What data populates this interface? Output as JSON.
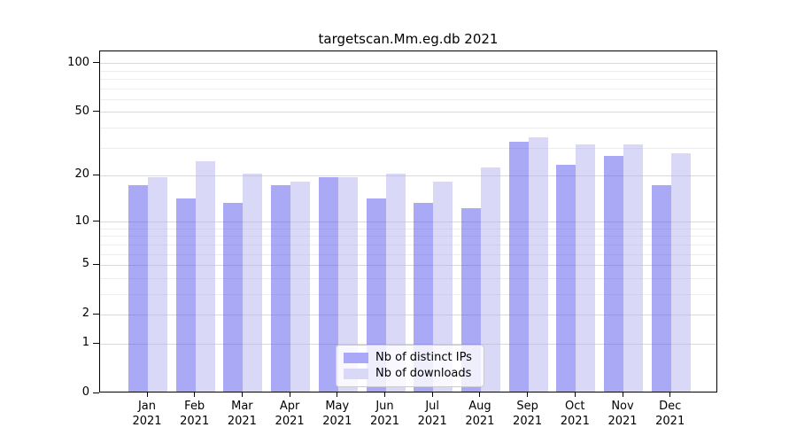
{
  "title": "targetscan.Mm.eg.db 2021",
  "colors": {
    "ips_bar": "rgba(84,84,238,0.5)",
    "downloads_bar": "rgba(179,179,239,0.5)",
    "ips_legend_swatch": "#a9a9f7",
    "downloads_legend_swatch": "#d9d9f7",
    "grid_major": "#d9d9d9",
    "grid_minor": "#ededed",
    "axis": "#000000",
    "text": "#000000",
    "legend_border": "#cccccc"
  },
  "chart_data": {
    "type": "bar",
    "title": "targetscan.Mm.eg.db 2021",
    "categories": [
      "Jan 2021",
      "Feb 2021",
      "Mar 2021",
      "Apr 2021",
      "May 2021",
      "Jun 2021",
      "Jul 2021",
      "Aug 2021",
      "Sep 2021",
      "Oct 2021",
      "Nov 2021",
      "Dec 2021"
    ],
    "month_labels": [
      "Jan",
      "Feb",
      "Mar",
      "Apr",
      "May",
      "Jun",
      "Jul",
      "Aug",
      "Sep",
      "Oct",
      "Nov",
      "Dec"
    ],
    "year_label": "2021",
    "series": [
      {
        "name": "Nb of distinct IPs",
        "color_key": "ips",
        "values": [
          17,
          14,
          13,
          17,
          19,
          14,
          13,
          12,
          32,
          23,
          26,
          17
        ]
      },
      {
        "name": "Nb of downloads",
        "color_key": "downloads",
        "values": [
          19,
          24,
          20,
          18,
          19,
          20,
          18,
          22,
          34,
          31,
          31,
          27
        ]
      }
    ],
    "xlabel": "",
    "ylabel": "",
    "y_scale": "log10(value+1)",
    "y_ticks": [
      0,
      1,
      2,
      5,
      10,
      20,
      50,
      100
    ],
    "y_minor_gridlines": [
      3,
      4,
      6,
      7,
      8,
      9,
      30,
      40,
      60,
      70,
      80,
      90
    ],
    "ylim": [
      0,
      117
    ],
    "grid": true,
    "legend_position": "lower-center-inside"
  }
}
